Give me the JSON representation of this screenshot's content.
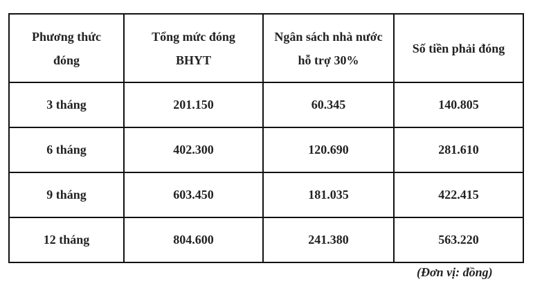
{
  "table": {
    "headers": [
      [
        "Phương thức",
        "đóng"
      ],
      [
        "Tổng mức đóng",
        "BHYT"
      ],
      [
        "Ngân sách nhà nước",
        "hỗ trợ 30%"
      ],
      [
        "Số tiền phải đóng"
      ]
    ],
    "rows": [
      [
        "3 tháng",
        "201.150",
        "60.345",
        "140.805"
      ],
      [
        "6 tháng",
        "402.300",
        "120.690",
        "281.610"
      ],
      [
        "9 tháng",
        "603.450",
        "181.035",
        "422.415"
      ],
      [
        "12 tháng",
        "804.600",
        "241.380",
        "563.220"
      ]
    ]
  },
  "unit_note": "(Đơn vị: đồng)"
}
